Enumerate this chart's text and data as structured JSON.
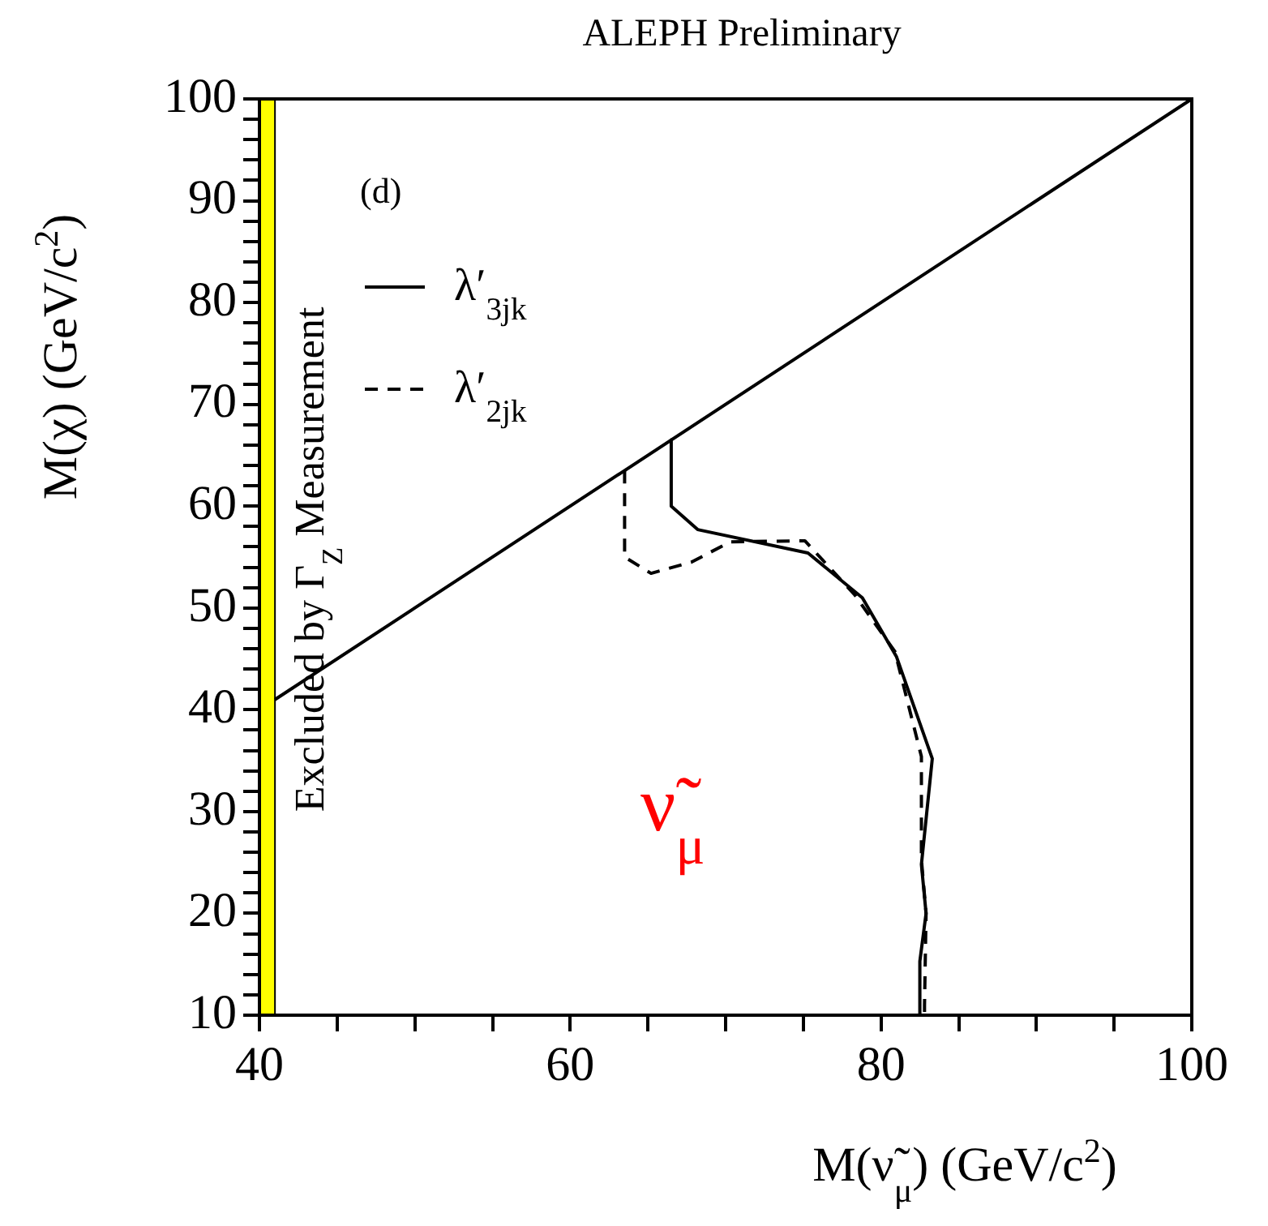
{
  "chart_data": {
    "type": "line",
    "title": "ALEPH Preliminary",
    "xlabel": "M(ν̃$_{μ}$) (GeV/c$^{2}$)",
    "ylabel": "M(χ) (GeV/c$^{2}$)",
    "xlim": [
      40,
      100
    ],
    "ylim": [
      10,
      100
    ],
    "xticks": [
      40,
      {
        "value": 45,
        "label": null
      },
      {
        "value": 50,
        "label": null
      },
      {
        "value": 55,
        "label": null
      },
      60,
      {
        "value": 65,
        "label": null
      },
      {
        "value": 70,
        "label": null
      },
      {
        "value": 75,
        "label": null
      },
      80,
      {
        "value": 85,
        "label": null
      },
      {
        "value": 90,
        "label": null
      },
      {
        "value": 95,
        "label": null
      },
      100
    ],
    "yticks": [
      10,
      {
        "value": 12,
        "label": null
      },
      {
        "value": 14,
        "label": null
      },
      {
        "value": 16,
        "label": null
      },
      {
        "value": 18,
        "label": null
      },
      20,
      {
        "value": 22,
        "label": null
      },
      {
        "value": 24,
        "label": null
      },
      {
        "value": 26,
        "label": null
      },
      {
        "value": 28,
        "label": null
      },
      30,
      {
        "value": 32,
        "label": null
      },
      {
        "value": 34,
        "label": null
      },
      {
        "value": 36,
        "label": null
      },
      {
        "value": 38,
        "label": null
      },
      40,
      {
        "value": 42,
        "label": null
      },
      {
        "value": 44,
        "label": null
      },
      {
        "value": 46,
        "label": null
      },
      {
        "value": 48,
        "label": null
      },
      50,
      {
        "value": 52,
        "label": null
      },
      {
        "value": 54,
        "label": null
      },
      {
        "value": 56,
        "label": null
      },
      {
        "value": 58,
        "label": null
      },
      60,
      {
        "value": 62,
        "label": null
      },
      {
        "value": 64,
        "label": null
      },
      {
        "value": 66,
        "label": null
      },
      {
        "value": 68,
        "label": null
      },
      70,
      {
        "value": 72,
        "label": null
      },
      {
        "value": 74,
        "label": null
      },
      {
        "value": 76,
        "label": null
      },
      {
        "value": 78,
        "label": null
      },
      80,
      {
        "value": 82,
        "label": null
      },
      {
        "value": 84,
        "label": null
      },
      {
        "value": 86,
        "label": null
      },
      {
        "value": 88,
        "label": null
      },
      90,
      {
        "value": 92,
        "label": null
      },
      {
        "value": 94,
        "label": null
      },
      {
        "value": 96,
        "label": null
      },
      {
        "value": 98,
        "label": null
      },
      100
    ],
    "grid": false,
    "legend": "top left",
    "marker": "none",
    "series": [
      {
        "name": "λ′$_{3jk}$",
        "color": "#000000",
        "line_style": "solid",
        "x": [
          66.5,
          66.5,
          68.2,
          75.3,
          78.8,
          81,
          83.3,
          82.6,
          82.9,
          82.5,
          82.5
        ],
        "values": [
          66.5,
          60,
          57.7,
          55.4,
          51,
          45.2,
          35.2,
          24.8,
          20,
          15.3,
          10
        ]
      },
      {
        "name": "λ′$_{2jk}$",
        "color": "#000000",
        "line_style": "dashed",
        "x": [
          63.5,
          63.5,
          65.2,
          67.8,
          70.3,
          75.1,
          78.3,
          80.9,
          82.6,
          82.6,
          82.9,
          82.8,
          82.8
        ],
        "values": [
          63.5,
          55,
          53.4,
          54.5,
          56.5,
          56.6,
          51.3,
          45.7,
          35.4,
          25.3,
          20,
          11,
          10
        ]
      },
      {
        "color": "#000000",
        "line_style": "solid",
        "x": [
          41,
          100
        ],
        "values": [
          41,
          100
        ]
      }
    ],
    "bands": [
      {
        "axis": "x",
        "from": 40,
        "to": 41,
        "label": "Excluded by Γ$_{Z}$ Measurement",
        "color": "#ffff00"
      }
    ],
    "annotations": [
      "(d)",
      "ν̃$_{μ}$"
    ]
  }
}
